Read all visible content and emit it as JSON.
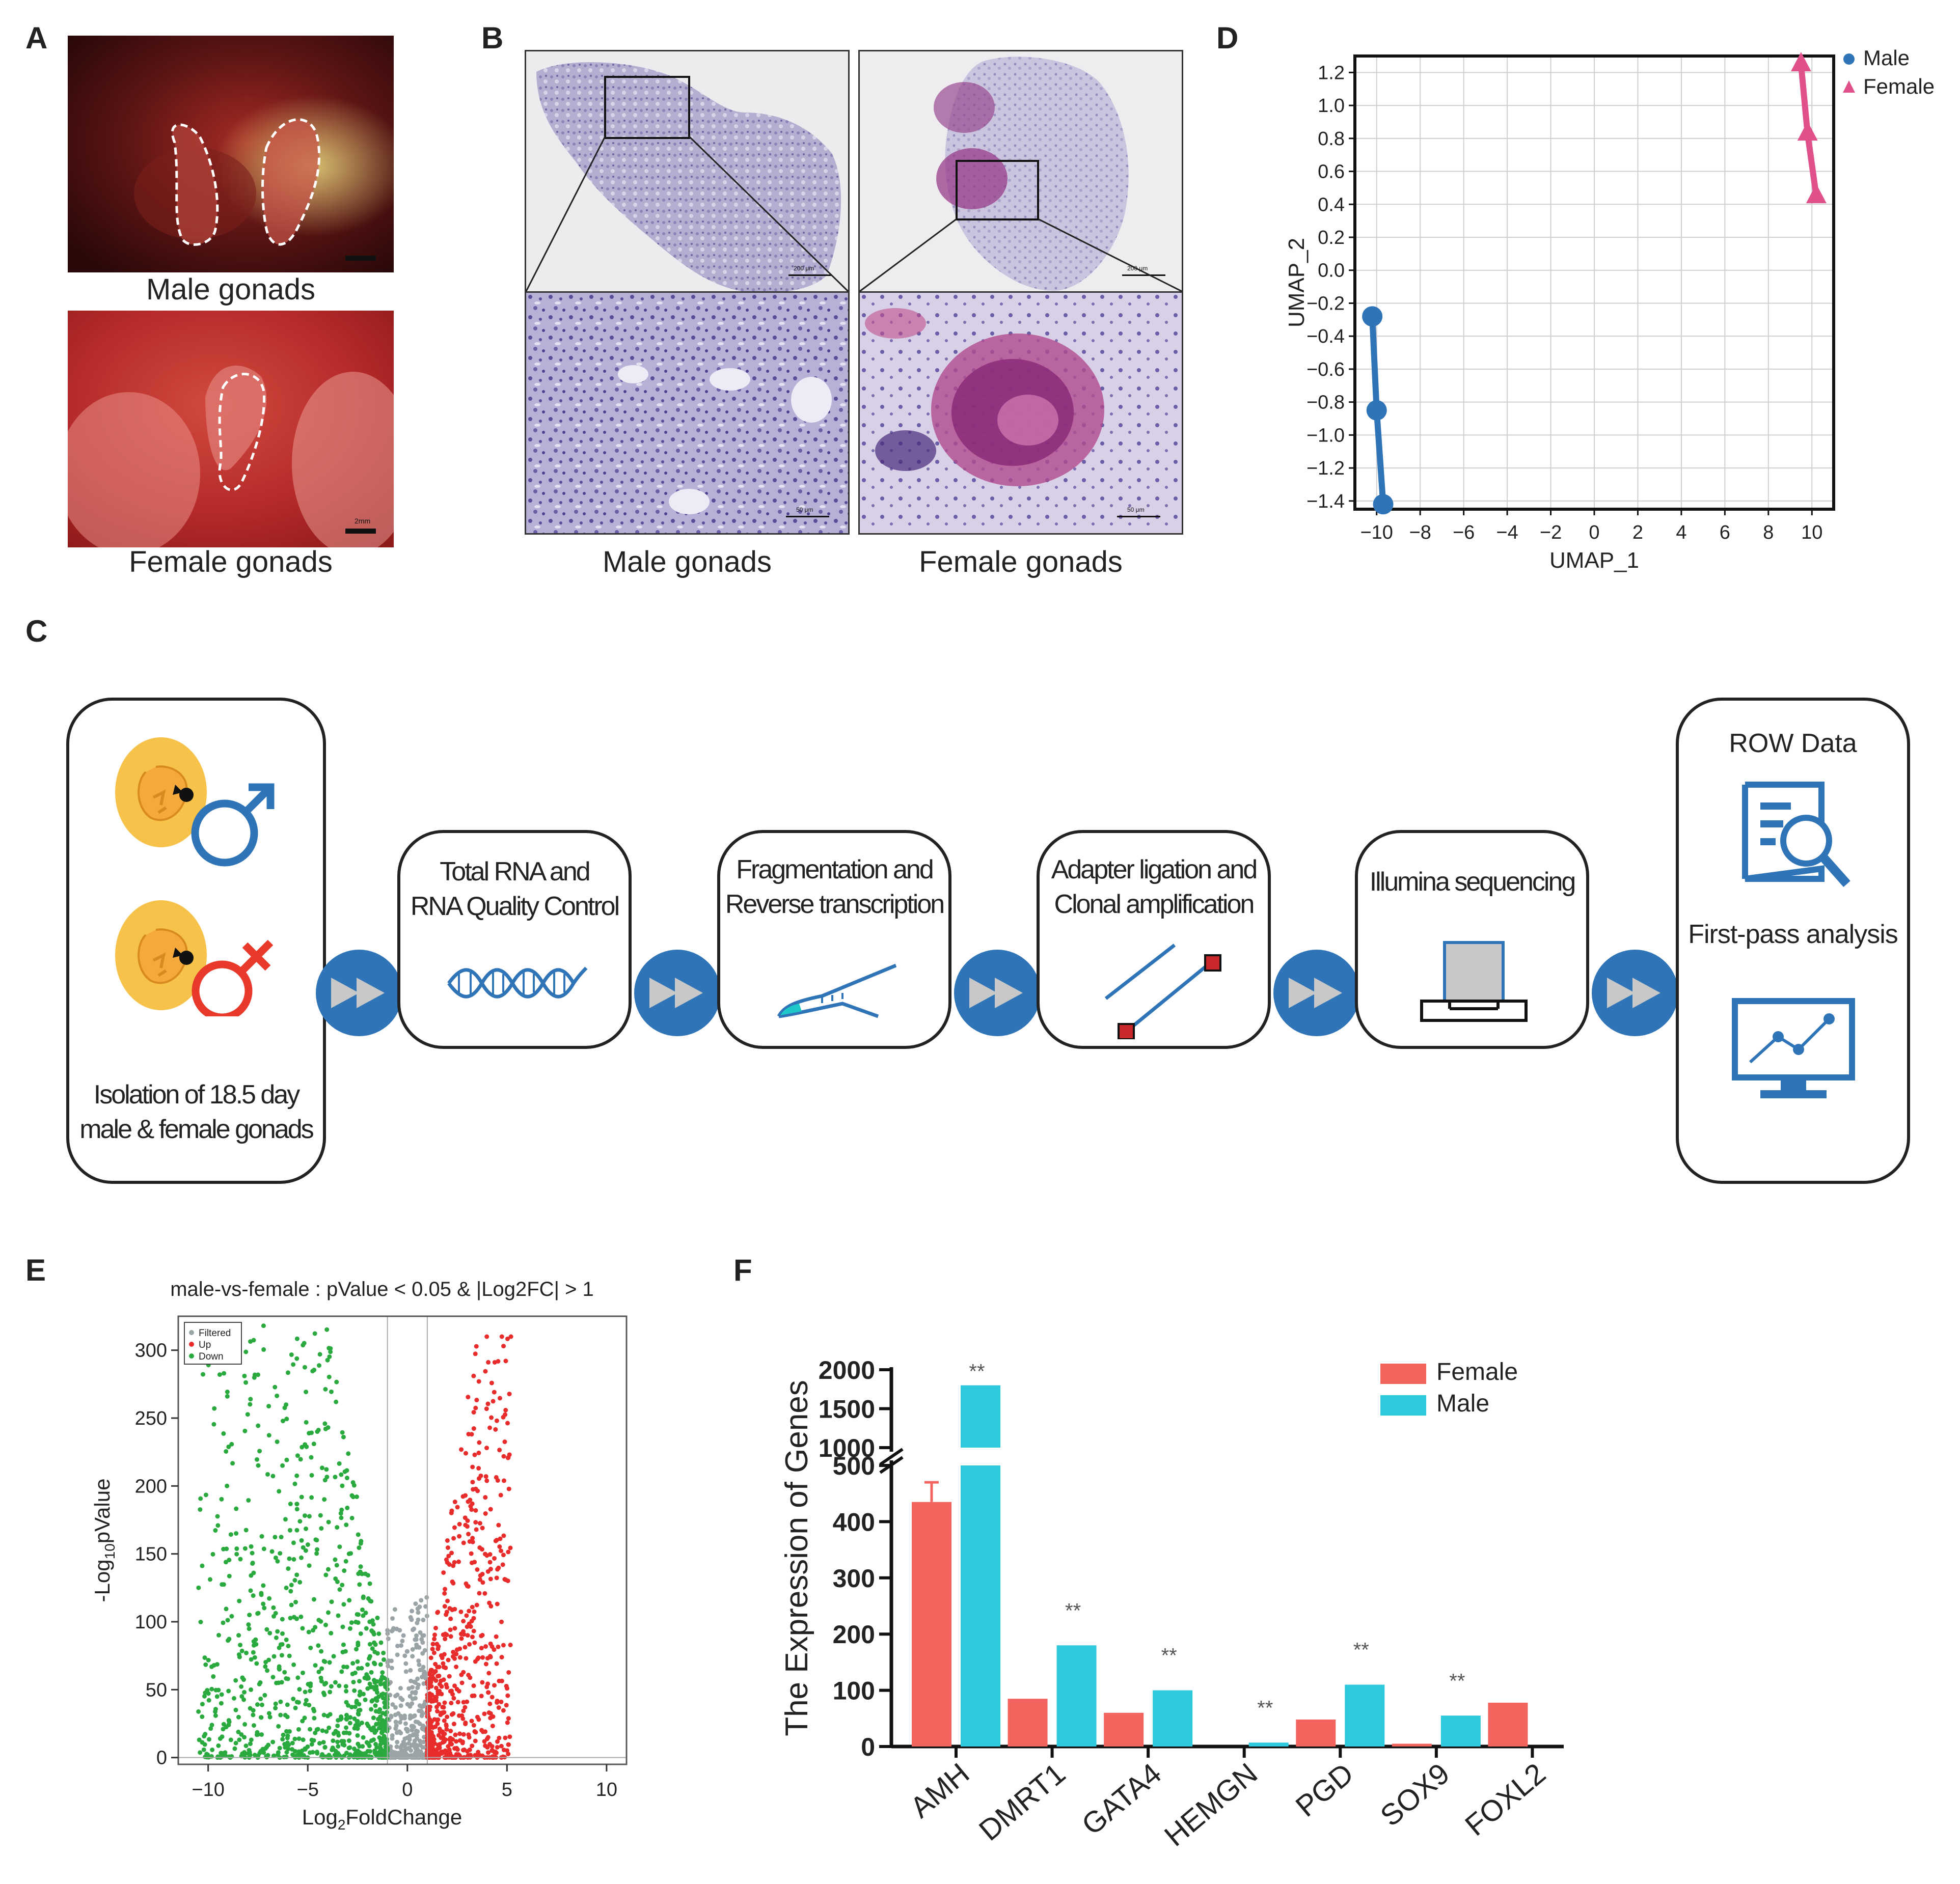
{
  "panels": {
    "A": {
      "label": "A",
      "male_caption": "Male gonads",
      "female_caption": "Female gonads",
      "scale_label": "2mm"
    },
    "B": {
      "label": "B",
      "male_caption": "Male gonads",
      "female_caption": "Female gonads",
      "scale_top": "200 μm",
      "scale_bottom": "50 μm"
    },
    "C": {
      "label": "C",
      "steps": [
        {
          "line1": "Isolation of 18.5 day",
          "line2": "male & female gonads"
        },
        {
          "line1": "Total RNA and",
          "line2": "RNA Quality Control"
        },
        {
          "line1": "Fragmentation and",
          "line2": "Reverse transcription"
        },
        {
          "line1": "Adapter ligation and",
          "line2": "Clonal amplification"
        },
        {
          "line1": "Illumina sequencing",
          "line2": ""
        },
        {
          "line1": "ROW Data",
          "line2": "First-pass analysis"
        }
      ],
      "colors": {
        "blue": "#2f74b7",
        "red": "#e8392b",
        "yolk": "#f6c24a",
        "teal": "#1ec8c8"
      },
      "icons": [
        "male-symbol-icon",
        "female-symbol-icon",
        "dna-icon",
        "pipette-icon",
        "adapter-icon",
        "sequencer-icon",
        "document-search-icon",
        "monitor-chart-icon",
        "double-arrow-icon"
      ]
    },
    "D": {
      "label": "D"
    },
    "E": {
      "label": "E"
    },
    "F": {
      "label": "F"
    }
  },
  "chart_data": [
    {
      "id": "D",
      "type": "line",
      "title": "",
      "xlabel": "UMAP_1",
      "ylabel": "UMAP_2",
      "xlim": [
        -11,
        11
      ],
      "ylim": [
        -1.45,
        1.3
      ],
      "xticks": [
        -10,
        -8,
        -6,
        -4,
        -2,
        0,
        2,
        4,
        6,
        8,
        10
      ],
      "yticks": [
        1.2,
        1.0,
        0.8,
        0.6,
        0.4,
        0.2,
        0.0,
        -0.2,
        -0.4,
        -0.6,
        -0.8,
        -1.0,
        -1.2,
        -1.4
      ],
      "xtick_labels": [
        "−10",
        "−8",
        "−6",
        "−4",
        "−2",
        "0",
        "2",
        "4",
        "6",
        "8",
        "10"
      ],
      "ytick_labels": [
        "1.2",
        "1.0",
        "0.8",
        "0.6",
        "0.4",
        "0.2",
        "0.0",
        "−0.2",
        "−0.4",
        "−0.6",
        "−0.8",
        "−1.0",
        "−1.2",
        "−1.4"
      ],
      "grid": true,
      "legend": "top-right",
      "series": [
        {
          "name": "Male",
          "color": "#2f74b7",
          "marker": "circle",
          "x": [
            -10.2,
            -10.0,
            -9.7
          ],
          "y": [
            -0.28,
            -0.85,
            -1.42
          ]
        },
        {
          "name": "Female",
          "color": "#e0508a",
          "marker": "triangle",
          "x": [
            9.5,
            9.8,
            10.2
          ],
          "y": [
            1.25,
            0.83,
            0.45
          ]
        }
      ]
    },
    {
      "id": "E",
      "type": "scatter",
      "title": "male-vs-female : pValue < 0.05 & |Log2FC| > 1",
      "xlabel_main": "Log",
      "xlabel_sub": "2",
      "xlabel_tail": "FoldChange",
      "ylabel_main": "-Log",
      "ylabel_sub": "10",
      "ylabel_tail": "pValue",
      "xlim": [
        -11.5,
        11
      ],
      "ylim": [
        -5,
        325
      ],
      "xticks": [
        -10,
        -5,
        0,
        5,
        10
      ],
      "yticks": [
        0,
        50,
        100,
        150,
        200,
        250,
        300
      ],
      "xtick_labels": [
        "−10",
        "−5",
        "0",
        "5",
        "10"
      ],
      "ytick_labels": [
        "0",
        "50",
        "100",
        "150",
        "200",
        "250",
        "300"
      ],
      "thresholds": [
        -1,
        1
      ],
      "legend": "top-left",
      "legend_entries": [
        {
          "name": "Filtered",
          "color": "#9aa4a6"
        },
        {
          "name": "Up",
          "color": "#e82b2b"
        },
        {
          "name": "Down",
          "color": "#2aaa3e"
        }
      ],
      "series": [
        {
          "name": "Filtered",
          "color": "#9aa4a6",
          "x_range": [
            -1,
            1
          ],
          "y_range": [
            0,
            120
          ],
          "count": 320
        },
        {
          "name": "Up",
          "color": "#e82b2b",
          "x_range": [
            1,
            5.2
          ],
          "y_range": [
            0,
            310
          ],
          "count": 650
        },
        {
          "name": "Down",
          "color": "#2aaa3e",
          "x_range": [
            -10.5,
            -1
          ],
          "y_range": [
            0,
            318
          ],
          "count": 900
        }
      ]
    },
    {
      "id": "F",
      "type": "bar",
      "title": "",
      "ylabel": "The Expression of Genes",
      "categories": [
        "AMH",
        "DMRT1",
        "GATA4",
        "HEMGN",
        "PGD",
        "SOX9",
        "FOXL2"
      ],
      "series": [
        {
          "name": "Female",
          "color": "#f4645f",
          "values": [
            435,
            85,
            60,
            0,
            48,
            5,
            78
          ]
        },
        {
          "name": "Male",
          "color": "#2ec9dc",
          "values": [
            1800,
            180,
            100,
            7,
            110,
            55,
            0
          ]
        }
      ],
      "errors": {
        "Female": [
          35,
          0,
          0,
          0,
          0,
          0,
          0
        ]
      },
      "significance": [
        "**",
        "**",
        "**",
        "**",
        "**",
        "**",
        ""
      ],
      "y_lower_ticks": [
        0,
        100,
        200,
        300,
        400,
        500
      ],
      "y_upper_ticks": [
        1000,
        1500,
        2000
      ],
      "y_tick_labels": [
        "0",
        "100",
        "200",
        "300",
        "400",
        "500",
        "1000",
        "1500",
        "2000"
      ],
      "ylim_lower": [
        0,
        500
      ],
      "ylim_upper": [
        1000,
        2000
      ],
      "legend": "top-right"
    }
  ]
}
